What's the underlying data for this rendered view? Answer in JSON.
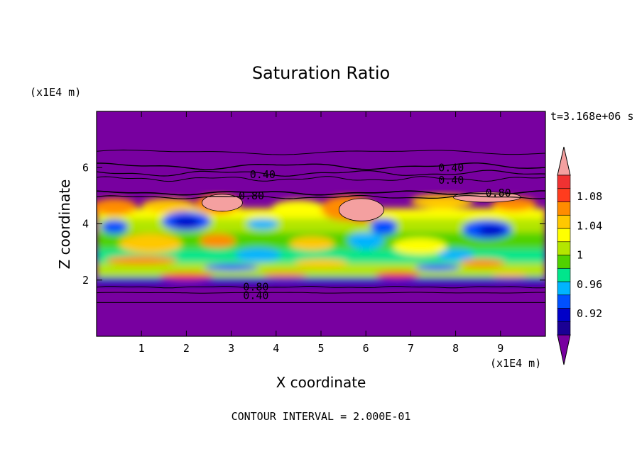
{
  "chart_data": {
    "type": "heatmap",
    "title": "Saturation Ratio",
    "xlabel": "X coordinate",
    "ylabel": "Z coordinate",
    "x_unit": "(x1E4 m)",
    "y_unit": "(x1E4 m)",
    "time_label": "t=3.168e+06 s",
    "footer": "CONTOUR INTERVAL = 2.000E-01",
    "xlim": [
      0,
      10
    ],
    "ylim": [
      0,
      8
    ],
    "x_ticks": [
      "1",
      "2",
      "3",
      "4",
      "5",
      "6",
      "7",
      "8",
      "9"
    ],
    "y_ticks": [
      "2",
      "4",
      "6"
    ],
    "colorbar": {
      "levels": [
        0.9,
        0.92,
        0.94,
        0.96,
        0.98,
        1.0,
        1.02,
        1.04,
        1.06,
        1.08,
        1.1
      ],
      "labels": [
        "0.92",
        "0.96",
        "1",
        "1.04",
        "1.08"
      ],
      "colors": [
        "#1a0094",
        "#0000c8",
        "#0050ff",
        "#00b4ff",
        "#00e68c",
        "#50d200",
        "#b4e600",
        "#ffff00",
        "#ffc800",
        "#ff8c00",
        "#ff3c1e",
        "#f03232"
      ],
      "below_color": "#7800a0",
      "above_color": "#f4a0a0"
    },
    "contour_labels": [
      {
        "text": "0.40",
        "x": 3.7,
        "z": 5.75
      },
      {
        "text": "0.80",
        "x": 3.45,
        "z": 5.0
      },
      {
        "text": "0.40",
        "x": 7.9,
        "z": 6.0
      },
      {
        "text": "0.40",
        "x": 7.9,
        "z": 5.55
      },
      {
        "text": "0.80",
        "x": 8.95,
        "z": 5.1
      },
      {
        "text": "0.80",
        "x": 3.55,
        "z": 1.75
      },
      {
        "text": "0.40",
        "x": 3.55,
        "z": 1.45
      }
    ]
  }
}
